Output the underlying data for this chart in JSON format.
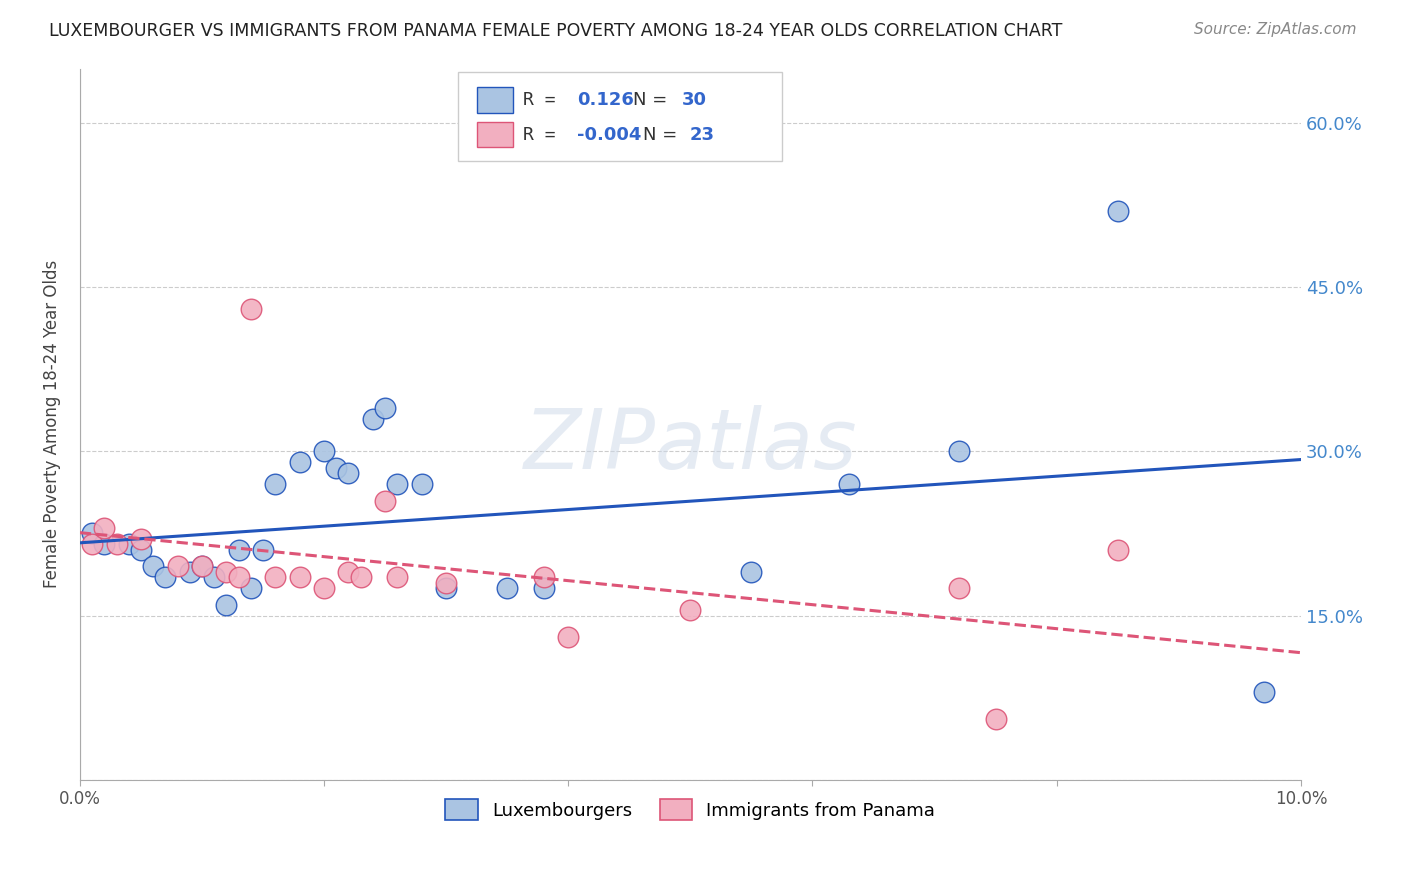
{
  "title": "LUXEMBOURGER VS IMMIGRANTS FROM PANAMA FEMALE POVERTY AMONG 18-24 YEAR OLDS CORRELATION CHART",
  "source": "Source: ZipAtlas.com",
  "ylabel": "Female Poverty Among 18-24 Year Olds",
  "xlim": [
    0.0,
    0.1
  ],
  "ylim": [
    0.0,
    0.65
  ],
  "xticks": [
    0.0,
    0.02,
    0.04,
    0.06,
    0.08,
    0.1
  ],
  "xticklabels": [
    "0.0%",
    "",
    "",
    "",
    "",
    "10.0%"
  ],
  "ytick_positions": [
    0.0,
    0.15,
    0.3,
    0.45,
    0.6
  ],
  "yticklabels_right": [
    "",
    "15.0%",
    "30.0%",
    "45.0%",
    "60.0%"
  ],
  "blue_R": "0.126",
  "blue_N": "30",
  "pink_R": "-0.004",
  "pink_N": "23",
  "blue_color": "#aac4e2",
  "pink_color": "#f2afc0",
  "line_blue": "#2255bb",
  "line_pink": "#dd5577",
  "watermark": "ZIPatlas",
  "blue_scatter_x": [
    0.001,
    0.002,
    0.004,
    0.005,
    0.006,
    0.007,
    0.009,
    0.01,
    0.011,
    0.012,
    0.013,
    0.014,
    0.015,
    0.016,
    0.018,
    0.02,
    0.021,
    0.022,
    0.024,
    0.025,
    0.026,
    0.028,
    0.03,
    0.035,
    0.038,
    0.055,
    0.063,
    0.072,
    0.085,
    0.097
  ],
  "blue_scatter_y": [
    0.225,
    0.215,
    0.215,
    0.21,
    0.195,
    0.185,
    0.19,
    0.195,
    0.185,
    0.16,
    0.21,
    0.175,
    0.21,
    0.27,
    0.29,
    0.3,
    0.285,
    0.28,
    0.33,
    0.34,
    0.27,
    0.27,
    0.175,
    0.175,
    0.175,
    0.19,
    0.27,
    0.3,
    0.52,
    0.08
  ],
  "pink_scatter_x": [
    0.001,
    0.002,
    0.003,
    0.005,
    0.008,
    0.01,
    0.012,
    0.013,
    0.014,
    0.016,
    0.018,
    0.02,
    0.022,
    0.023,
    0.025,
    0.026,
    0.03,
    0.038,
    0.04,
    0.05,
    0.072,
    0.075,
    0.085
  ],
  "pink_scatter_y": [
    0.215,
    0.23,
    0.215,
    0.22,
    0.195,
    0.195,
    0.19,
    0.185,
    0.43,
    0.185,
    0.185,
    0.175,
    0.19,
    0.185,
    0.255,
    0.185,
    0.18,
    0.185,
    0.13,
    0.155,
    0.175,
    0.055,
    0.21
  ]
}
